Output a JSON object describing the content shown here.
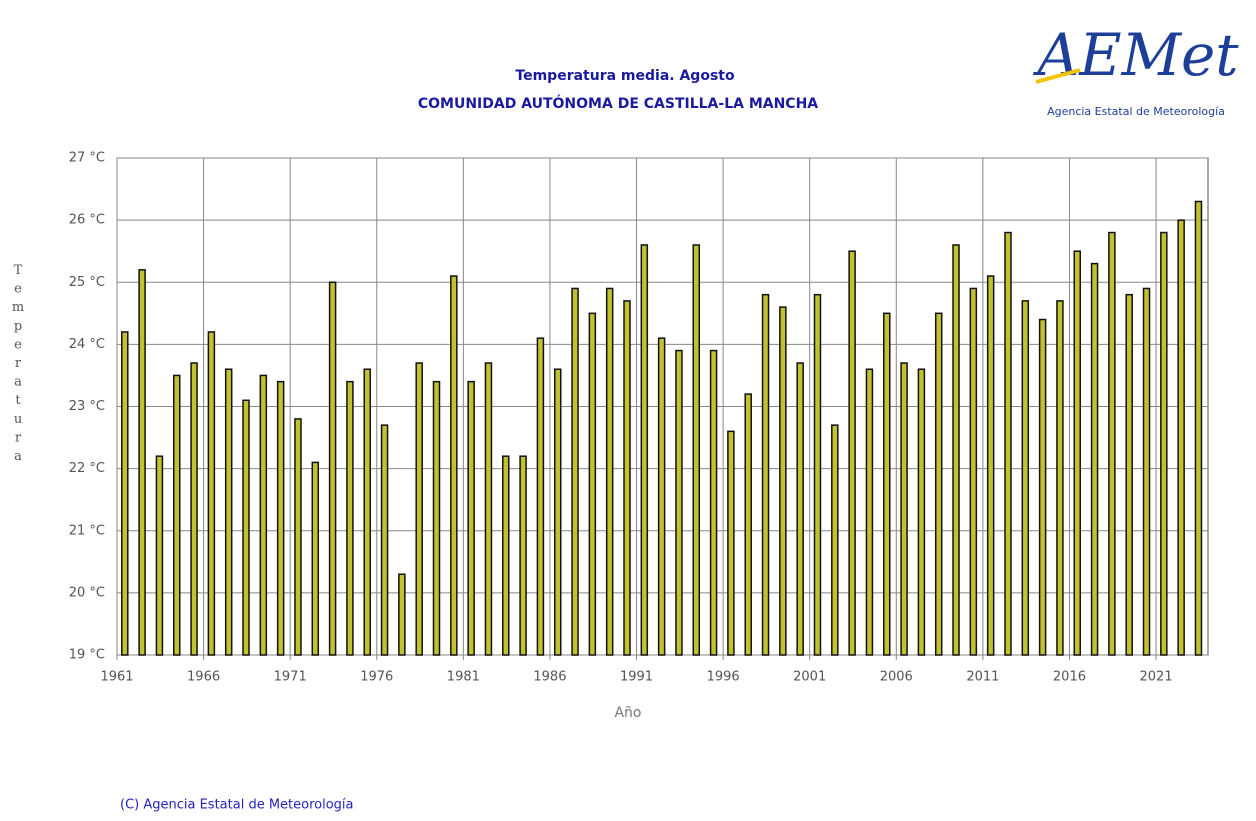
{
  "chart_data": {
    "type": "bar",
    "title": "Temperatura media. Agosto",
    "subtitle": "COMUNIDAD AUTÓNOMA DE CASTILLA-LA MANCHA",
    "x_label": "Año",
    "y_label": "Temperatura",
    "x": [
      1961,
      1962,
      1963,
      1964,
      1965,
      1966,
      1967,
      1968,
      1969,
      1970,
      1971,
      1972,
      1973,
      1974,
      1975,
      1976,
      1977,
      1978,
      1979,
      1980,
      1981,
      1982,
      1983,
      1984,
      1985,
      1986,
      1987,
      1988,
      1989,
      1990,
      1991,
      1992,
      1993,
      1994,
      1995,
      1996,
      1997,
      1998,
      1999,
      2000,
      2001,
      2002,
      2003,
      2004,
      2005,
      2006,
      2007,
      2008,
      2009,
      2010,
      2011,
      2012,
      2013,
      2014,
      2015,
      2016,
      2017,
      2018,
      2019,
      2020,
      2021,
      2022,
      2023
    ],
    "values": [
      24.2,
      25.2,
      22.2,
      23.5,
      23.7,
      24.2,
      23.6,
      23.1,
      23.5,
      23.4,
      22.8,
      22.1,
      25.0,
      23.4,
      23.6,
      22.7,
      20.3,
      23.7,
      23.4,
      25.1,
      23.4,
      23.7,
      22.2,
      22.2,
      24.1,
      23.6,
      24.9,
      24.5,
      24.9,
      24.7,
      25.6,
      24.1,
      23.9,
      25.6,
      23.9,
      22.6,
      23.2,
      24.8,
      24.6,
      23.7,
      24.8,
      22.7,
      25.5,
      23.6,
      24.5,
      23.7,
      23.6,
      24.5,
      25.6,
      24.9,
      25.1,
      25.8,
      24.7,
      24.4,
      24.7,
      25.5,
      25.3,
      25.8,
      24.8,
      24.9,
      25.8,
      26.0,
      26.3
    ],
    "color": "#c2c22e",
    "xlim": [
      1961,
      2024
    ],
    "xticks": [
      1961,
      1966,
      1971,
      1976,
      1981,
      1986,
      1991,
      1996,
      2001,
      2006,
      2011,
      2016,
      2021
    ],
    "ylim": [
      19,
      27
    ],
    "yticks": [
      {
        "value": 19,
        "label": "19 °C"
      },
      {
        "value": 20,
        "label": "20 °C"
      },
      {
        "value": 21,
        "label": "21 °C"
      },
      {
        "value": 22,
        "label": "22 °C"
      },
      {
        "value": 23,
        "label": "23 °C"
      },
      {
        "value": 24,
        "label": "24 °C"
      },
      {
        "value": 25,
        "label": "25 °C"
      },
      {
        "value": 26,
        "label": "26 °C"
      },
      {
        "value": 27,
        "label": "27 °C"
      }
    ],
    "grid": true
  },
  "logo": {
    "name": "AEMet",
    "tagline": "Agencia Estatal de Meteorología"
  },
  "footer": "(C) Agencia Estatal de Meteorología"
}
